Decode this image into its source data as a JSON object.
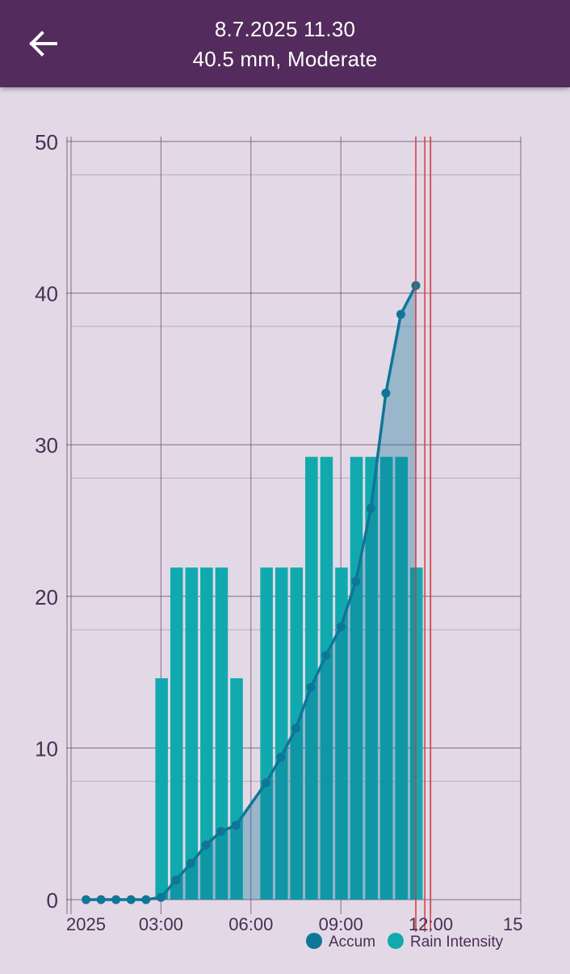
{
  "header": {
    "datetime": "8.7.2025 11.30",
    "summary": "40.5 mm, Moderate",
    "back_icon": "arrow-left-icon"
  },
  "colors": {
    "appbar": "#532b5c",
    "background": "#e3d9e6",
    "bars": "#10aaae",
    "line": "#0f7697",
    "area": "#0f7697",
    "marker_lines": "#d83a3a",
    "grid": "#6f4d74",
    "text": "#4a2d55"
  },
  "legend": [
    {
      "label": "Accum",
      "color": "#0f7697"
    },
    {
      "label": "Rain Intensity",
      "color": "#10aaae"
    }
  ],
  "chart_data": {
    "type": "bar",
    "y_ticks": [
      "0",
      "10",
      "20",
      "30",
      "40",
      "50"
    ],
    "x_ticks": [
      "2025",
      "03:00",
      "06:00",
      "09:00",
      "12:00",
      "15"
    ],
    "ylim": [
      0,
      50
    ],
    "xlim_hours": [
      0,
      15
    ],
    "series": [
      {
        "name": "Rain Intensity",
        "kind": "bar",
        "x": [
          3.0,
          3.5,
          4.0,
          4.5,
          5.0,
          5.5,
          6.5,
          7.0,
          7.5,
          8.0,
          8.5,
          9.0,
          9.5,
          10.0,
          10.5,
          11.0,
          11.5
        ],
        "values": [
          14.6,
          21.9,
          21.9,
          21.9,
          21.9,
          14.6,
          21.9,
          21.9,
          21.9,
          29.2,
          29.2,
          21.9,
          29.2,
          29.2,
          29.2,
          29.2,
          21.9
        ]
      },
      {
        "name": "Accum",
        "kind": "line-area",
        "x": [
          0.5,
          1.0,
          1.5,
          2.0,
          2.5,
          3.0,
          3.5,
          4.0,
          4.5,
          5.0,
          5.5,
          6.5,
          7.0,
          7.5,
          8.0,
          8.5,
          9.0,
          9.5,
          10.0,
          10.5,
          11.0,
          11.5
        ],
        "values": [
          0,
          0,
          0,
          0,
          0,
          0.15,
          1.3,
          2.4,
          3.6,
          4.5,
          4.9,
          7.7,
          9.4,
          11.3,
          14.0,
          16.1,
          18.0,
          21.0,
          25.8,
          33.4,
          38.6,
          40.5
        ]
      }
    ],
    "vertical_markers_hours": [
      11.5,
      11.8
    ]
  }
}
